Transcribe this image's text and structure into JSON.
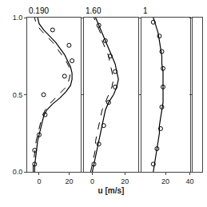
{
  "chart_data": [
    {
      "type": "line",
      "title": "0.190",
      "xlim": [
        -8,
        28
      ],
      "xticks": [
        0,
        20
      ],
      "ylim": [
        0.0,
        1.0
      ],
      "yticks": [
        {
          "value": 0.0,
          "label": "0.0"
        },
        {
          "value": 0.5,
          "label": "0.5"
        },
        {
          "value": 1.0,
          "label": "1.0"
        }
      ],
      "grid": false,
      "series": [
        {
          "type": "line",
          "line_style": "solid",
          "color": "black",
          "x": [
            -3,
            -3,
            -2.5,
            -2,
            -1.5,
            -1,
            0,
            1,
            2,
            3,
            5,
            9,
            14,
            18,
            21,
            22,
            22,
            21,
            19,
            17,
            14,
            11,
            7,
            3,
            0,
            -1
          ],
          "values": [
            0.0,
            0.04,
            0.08,
            0.12,
            0.16,
            0.2,
            0.24,
            0.28,
            0.32,
            0.36,
            0.4,
            0.44,
            0.48,
            0.52,
            0.56,
            0.6,
            0.64,
            0.68,
            0.72,
            0.76,
            0.8,
            0.84,
            0.88,
            0.92,
            0.96,
            1.0
          ]
        },
        {
          "type": "line",
          "line_style": "dash",
          "color": "black",
          "x": [
            -4,
            -4,
            -3.5,
            -3,
            -2.5,
            -2,
            -1,
            0,
            1,
            2,
            4,
            7,
            11,
            15,
            19,
            20,
            21,
            20,
            18,
            15,
            12,
            9,
            5,
            1,
            -2,
            -3
          ],
          "values": [
            0.0,
            0.04,
            0.08,
            0.12,
            0.16,
            0.2,
            0.24,
            0.28,
            0.32,
            0.36,
            0.4,
            0.44,
            0.48,
            0.52,
            0.56,
            0.6,
            0.64,
            0.68,
            0.72,
            0.76,
            0.8,
            0.84,
            0.88,
            0.92,
            0.96,
            1.0
          ]
        },
        {
          "type": "scatter",
          "marker": "circle-open",
          "color": "black",
          "x": [
            -3,
            -3,
            0,
            4,
            3,
            17,
            22,
            20,
            9
          ],
          "values": [
            0.05,
            0.14,
            0.24,
            0.37,
            0.5,
            0.62,
            0.72,
            0.82,
            0.92
          ]
        }
      ]
    },
    {
      "type": "line",
      "title": "1.60",
      "xlabel": "u [m/s]",
      "xlim": [
        -5,
        28
      ],
      "xticks": [
        0,
        20
      ],
      "ylim": [
        0.0,
        1.0
      ],
      "yticks": [
        0.0,
        0.5,
        1.0
      ],
      "tick_labels": "x",
      "grid": false,
      "series": [
        {
          "type": "line",
          "line_style": "solid",
          "color": "black",
          "x": [
            0,
            1,
            2,
            3,
            4,
            5,
            6,
            7,
            8,
            10,
            13,
            15,
            16,
            15,
            14,
            12,
            10,
            8,
            6,
            4,
            2
          ],
          "values": [
            0.0,
            0.05,
            0.1,
            0.15,
            0.2,
            0.25,
            0.3,
            0.35,
            0.4,
            0.45,
            0.5,
            0.55,
            0.6,
            0.65,
            0.7,
            0.75,
            0.8,
            0.85,
            0.9,
            0.95,
            1.0
          ]
        },
        {
          "type": "line",
          "line_style": "dash",
          "color": "black",
          "x": [
            -1,
            0,
            1,
            2,
            2,
            3,
            4,
            5,
            6,
            8,
            10,
            12,
            13,
            12,
            11,
            10,
            8,
            6,
            5,
            3,
            1
          ],
          "values": [
            0.0,
            0.05,
            0.1,
            0.15,
            0.2,
            0.25,
            0.3,
            0.35,
            0.4,
            0.45,
            0.5,
            0.55,
            0.6,
            0.65,
            0.7,
            0.75,
            0.8,
            0.85,
            0.9,
            0.95,
            1.0
          ]
        },
        {
          "type": "scatter",
          "marker": "circle-open",
          "color": "black",
          "x": [
            1,
            4,
            7,
            10,
            14,
            14,
            11,
            8,
            4
          ],
          "values": [
            0.05,
            0.18,
            0.3,
            0.45,
            0.55,
            0.65,
            0.75,
            0.85,
            0.95
          ]
        }
      ]
    },
    {
      "type": "line",
      "title": "1",
      "xlim": [
        0,
        40
      ],
      "xticks": [
        20,
        40
      ],
      "ylim": [
        0.0,
        1.0
      ],
      "yticks": [
        0.0,
        0.5,
        1.0
      ],
      "tick_labels": "x",
      "grid": false,
      "series": [
        {
          "type": "line",
          "line_style": "solid",
          "color": "black",
          "x": [
            10,
            11,
            12,
            13,
            14,
            15,
            15,
            16,
            17,
            18,
            18,
            18,
            18,
            18,
            17,
            17,
            16,
            15,
            14,
            12,
            10
          ],
          "values": [
            0.0,
            0.05,
            0.1,
            0.15,
            0.2,
            0.25,
            0.3,
            0.35,
            0.4,
            0.45,
            0.5,
            0.55,
            0.6,
            0.65,
            0.7,
            0.75,
            0.8,
            0.85,
            0.9,
            0.95,
            1.0
          ]
        },
        {
          "type": "scatter",
          "marker": "circle-open",
          "color": "black",
          "x": [
            10,
            13,
            16,
            17,
            18,
            18,
            17,
            15,
            10
          ],
          "values": [
            0.05,
            0.15,
            0.28,
            0.42,
            0.55,
            0.67,
            0.78,
            0.88,
            0.97
          ]
        }
      ]
    },
    {
      "type": "line",
      "xlim": [
        0,
        5
      ],
      "xticks": [],
      "ylim": [
        0.0,
        1.0
      ],
      "yticks": [
        0.0,
        0.5,
        1.0
      ],
      "tick_labels": false,
      "grid": false,
      "series": []
    }
  ]
}
